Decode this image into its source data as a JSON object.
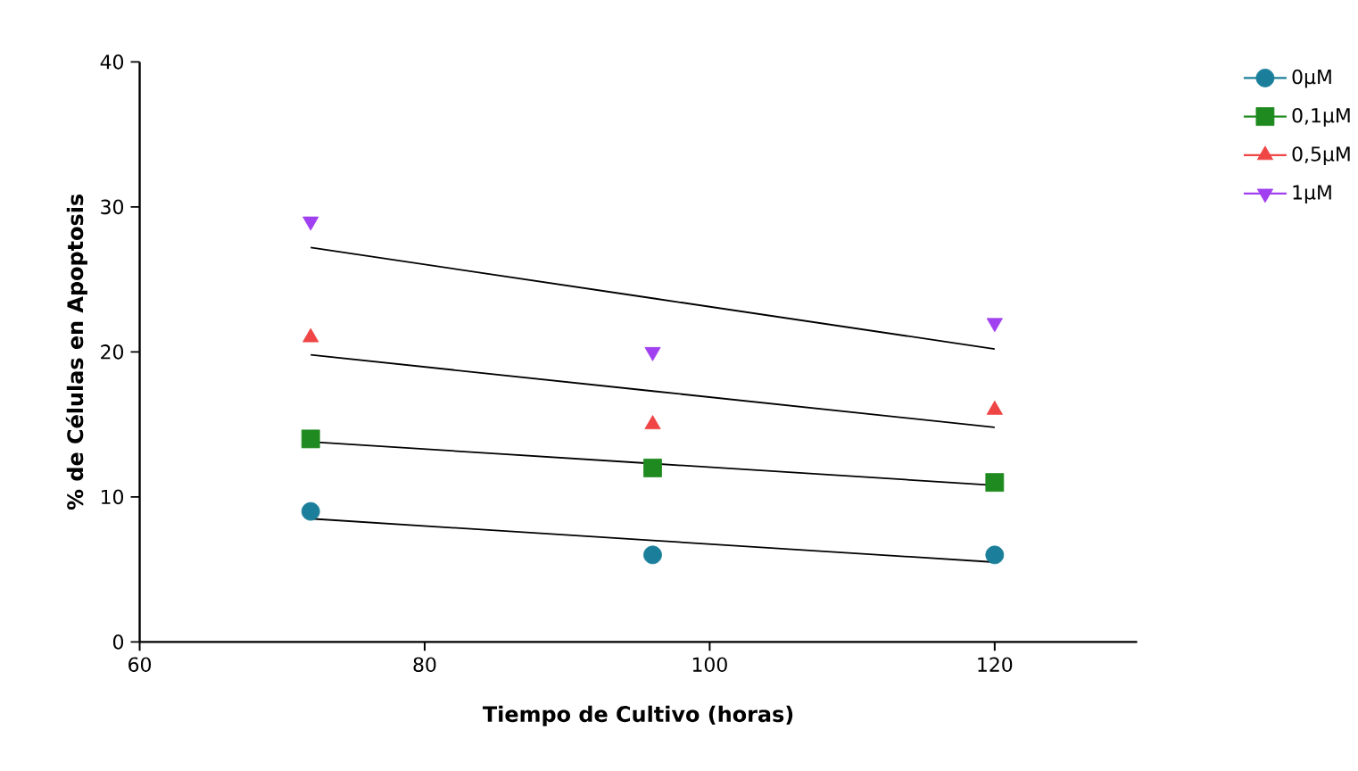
{
  "chart_data": {
    "type": "scatter",
    "xlabel": "Tiempo de Cultivo (horas)",
    "ylabel": "% de Células en Apoptosis",
    "x": [
      72,
      96,
      120
    ],
    "xlim": [
      60,
      130
    ],
    "xticks": [
      60,
      80,
      100,
      120
    ],
    "ylim": [
      0,
      40
    ],
    "yticks": [
      0,
      10,
      20,
      30,
      40
    ],
    "grid": false,
    "legend": "top right",
    "series": [
      {
        "name": "0µM",
        "color": "#1b7f9b",
        "marker": "circle",
        "values": [
          9,
          6,
          6
        ]
      },
      {
        "name": "0,1µM",
        "color": "#1f8a1f",
        "marker": "square",
        "values": [
          14,
          12,
          11
        ]
      },
      {
        "name": "0,5µM",
        "color": "#f04545",
        "marker": "triangle",
        "values": [
          21,
          15,
          16
        ]
      },
      {
        "name": "1µM",
        "color": "#a040f0",
        "marker": "triangle-down",
        "values": [
          29,
          20,
          22
        ]
      },
      {
        "type": "line",
        "color": "#000000",
        "marker": "none",
        "line_style": "solid",
        "values": [
          8.5,
          7.0,
          5.5
        ]
      },
      {
        "type": "line",
        "color": "#000000",
        "marker": "none",
        "line_style": "solid",
        "values": [
          13.8,
          12.3,
          10.8
        ]
      },
      {
        "type": "line",
        "color": "#000000",
        "marker": "none",
        "line_style": "solid",
        "values": [
          19.8,
          17.3,
          14.8
        ]
      },
      {
        "type": "line",
        "color": "#000000",
        "marker": "none",
        "line_style": "solid",
        "values": [
          27.2,
          23.7,
          20.2
        ]
      }
    ]
  }
}
